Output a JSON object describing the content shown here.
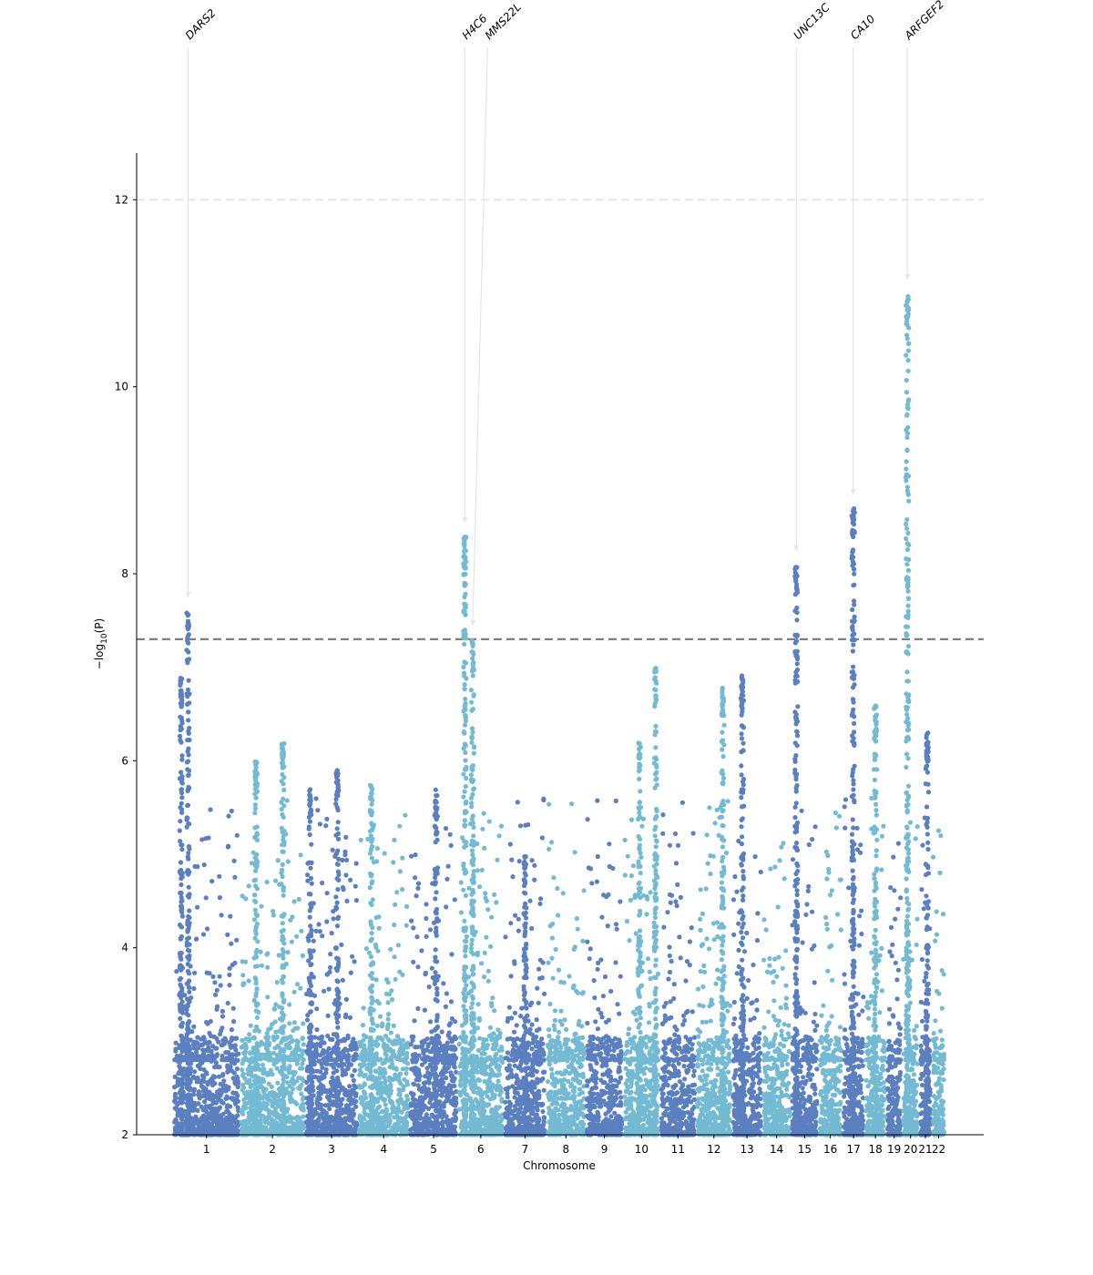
{
  "chart_data": {
    "type": "scatter",
    "title": "",
    "xlabel": "Chromosome",
    "ylabel_parts": [
      "−log",
      "10",
      "(P)"
    ],
    "ylim": [
      2,
      12.5
    ],
    "yticks": [
      2,
      4,
      6,
      8,
      10,
      12
    ],
    "grid": false,
    "series_colors": [
      "#5b7fbf",
      "#74bad2"
    ],
    "thresholds": [
      {
        "value": 7.3,
        "color": "#808080"
      },
      {
        "value": 12,
        "color": "#e8e8e8"
      }
    ],
    "chromosomes": [
      {
        "label": "1",
        "length": 249,
        "color": "#5b7fbf"
      },
      {
        "label": "2",
        "length": 243,
        "color": "#74bad2"
      },
      {
        "label": "3",
        "length": 198,
        "color": "#5b7fbf"
      },
      {
        "label": "4",
        "length": 191,
        "color": "#74bad2"
      },
      {
        "label": "5",
        "length": 181,
        "color": "#5b7fbf"
      },
      {
        "label": "6",
        "length": 171,
        "color": "#74bad2"
      },
      {
        "label": "7",
        "length": 159,
        "color": "#5b7fbf"
      },
      {
        "label": "8",
        "length": 146,
        "color": "#74bad2"
      },
      {
        "label": "9",
        "length": 141,
        "color": "#5b7fbf"
      },
      {
        "label": "10",
        "length": 136,
        "color": "#74bad2"
      },
      {
        "label": "11",
        "length": 135,
        "color": "#5b7fbf"
      },
      {
        "label": "12",
        "length": 133,
        "color": "#74bad2"
      },
      {
        "label": "13",
        "length": 114,
        "color": "#5b7fbf"
      },
      {
        "label": "14",
        "length": 107,
        "color": "#74bad2"
      },
      {
        "label": "15",
        "length": 102,
        "color": "#5b7fbf"
      },
      {
        "label": "16",
        "length": 90,
        "color": "#74bad2"
      },
      {
        "label": "17",
        "length": 83,
        "color": "#5b7fbf"
      },
      {
        "label": "18",
        "length": 80,
        "color": "#74bad2"
      },
      {
        "label": "19",
        "length": 59,
        "color": "#5b7fbf"
      },
      {
        "label": "20",
        "length": 64,
        "color": "#74bad2"
      },
      {
        "label": "21",
        "length": 47,
        "color": "#5b7fbf"
      },
      {
        "label": "22",
        "length": 51,
        "color": "#74bad2"
      }
    ],
    "peaks": [
      {
        "chrom": "1",
        "pos": 30,
        "y": 6.9
      },
      {
        "chrom": "1",
        "pos": 56,
        "y": 7.6
      },
      {
        "chrom": "2",
        "pos": 60,
        "y": 6.0
      },
      {
        "chrom": "2",
        "pos": 160,
        "y": 6.2
      },
      {
        "chrom": "3",
        "pos": 20,
        "y": 5.7
      },
      {
        "chrom": "3",
        "pos": 120,
        "y": 5.9
      },
      {
        "chrom": "4",
        "pos": 50,
        "y": 5.75
      },
      {
        "chrom": "5",
        "pos": 100,
        "y": 5.7
      },
      {
        "chrom": "6",
        "pos": 26,
        "y": 8.4
      },
      {
        "chrom": "6",
        "pos": 55,
        "y": 7.3
      },
      {
        "chrom": "7",
        "pos": 80,
        "y": 5.0
      },
      {
        "chrom": "10",
        "pos": 60,
        "y": 6.2
      },
      {
        "chrom": "10",
        "pos": 120,
        "y": 7.0
      },
      {
        "chrom": "12",
        "pos": 100,
        "y": 6.8
      },
      {
        "chrom": "13",
        "pos": 40,
        "y": 6.95
      },
      {
        "chrom": "15",
        "pos": 20,
        "y": 8.1
      },
      {
        "chrom": "17",
        "pos": 40,
        "y": 8.7
      },
      {
        "chrom": "18",
        "pos": 40,
        "y": 6.6
      },
      {
        "chrom": "20",
        "pos": 20,
        "y": 11.0
      },
      {
        "chrom": "21",
        "pos": 30,
        "y": 6.3
      }
    ],
    "annotations": [
      {
        "gene": "DARS2",
        "chrom": "1",
        "pos": 56,
        "y": 7.6
      },
      {
        "gene": "H4C6",
        "chrom": "6",
        "pos": 26,
        "y": 8.4
      },
      {
        "gene": "MMS22L",
        "chrom": "6",
        "pos": 55,
        "y": 7.3
      },
      {
        "gene": "UNC13C",
        "chrom": "15",
        "pos": 20,
        "y": 8.1
      },
      {
        "gene": "CA10",
        "chrom": "17",
        "pos": 40,
        "y": 8.7
      },
      {
        "gene": "ARFGEF2",
        "chrom": "20",
        "pos": 20,
        "y": 11.0
      }
    ]
  }
}
